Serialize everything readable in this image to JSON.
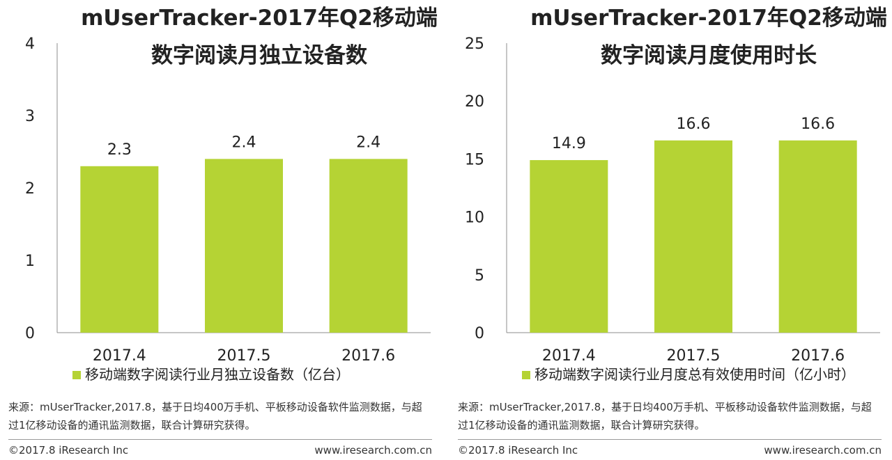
{
  "chart_data": [
    {
      "type": "bar",
      "title": "mUserTracker-2017年Q2移动端",
      "subtitle": "数字阅读月独立设备数",
      "categories": [
        "2017.4",
        "2017.5",
        "2017.6"
      ],
      "series": [
        {
          "name": "移动端数字阅读行业月独立设备数（亿台）",
          "values": [
            2.3,
            2.4,
            2.4
          ]
        }
      ],
      "data_labels": [
        "2.3",
        "2.4",
        "2.4"
      ],
      "yticks": [
        "0",
        "1",
        "2",
        "3",
        "4"
      ],
      "ylim": [
        0,
        4
      ],
      "xlabel": "",
      "ylabel": "",
      "grid": false,
      "legend_position": "bottom",
      "bar_color": "#b5d334"
    },
    {
      "type": "bar",
      "title": "mUserTracker-2017年Q2移动端",
      "subtitle": "数字阅读月度使用时长",
      "categories": [
        "2017.4",
        "2017.5",
        "2017.6"
      ],
      "series": [
        {
          "name": "移动端数字阅读行业月度总有效使用时间（亿小时）",
          "values": [
            14.9,
            16.6,
            16.6
          ]
        }
      ],
      "data_labels": [
        "14.9",
        "16.6",
        "16.6"
      ],
      "yticks": [
        "0",
        "5",
        "10",
        "15",
        "20",
        "25"
      ],
      "ylim": [
        0,
        25
      ],
      "xlabel": "",
      "ylabel": "",
      "grid": false,
      "legend_position": "bottom",
      "bar_color": "#b5d334"
    }
  ],
  "source_note": "来源：mUserTracker,2017.8，基于日均400万手机、平板移动设备软件监测数据，与超过1亿移动设备的通讯监测数据，联合计算研究获得。",
  "copyright": "©2017.8 iResearch Inc",
  "website": "www.iresearch.com.cn"
}
